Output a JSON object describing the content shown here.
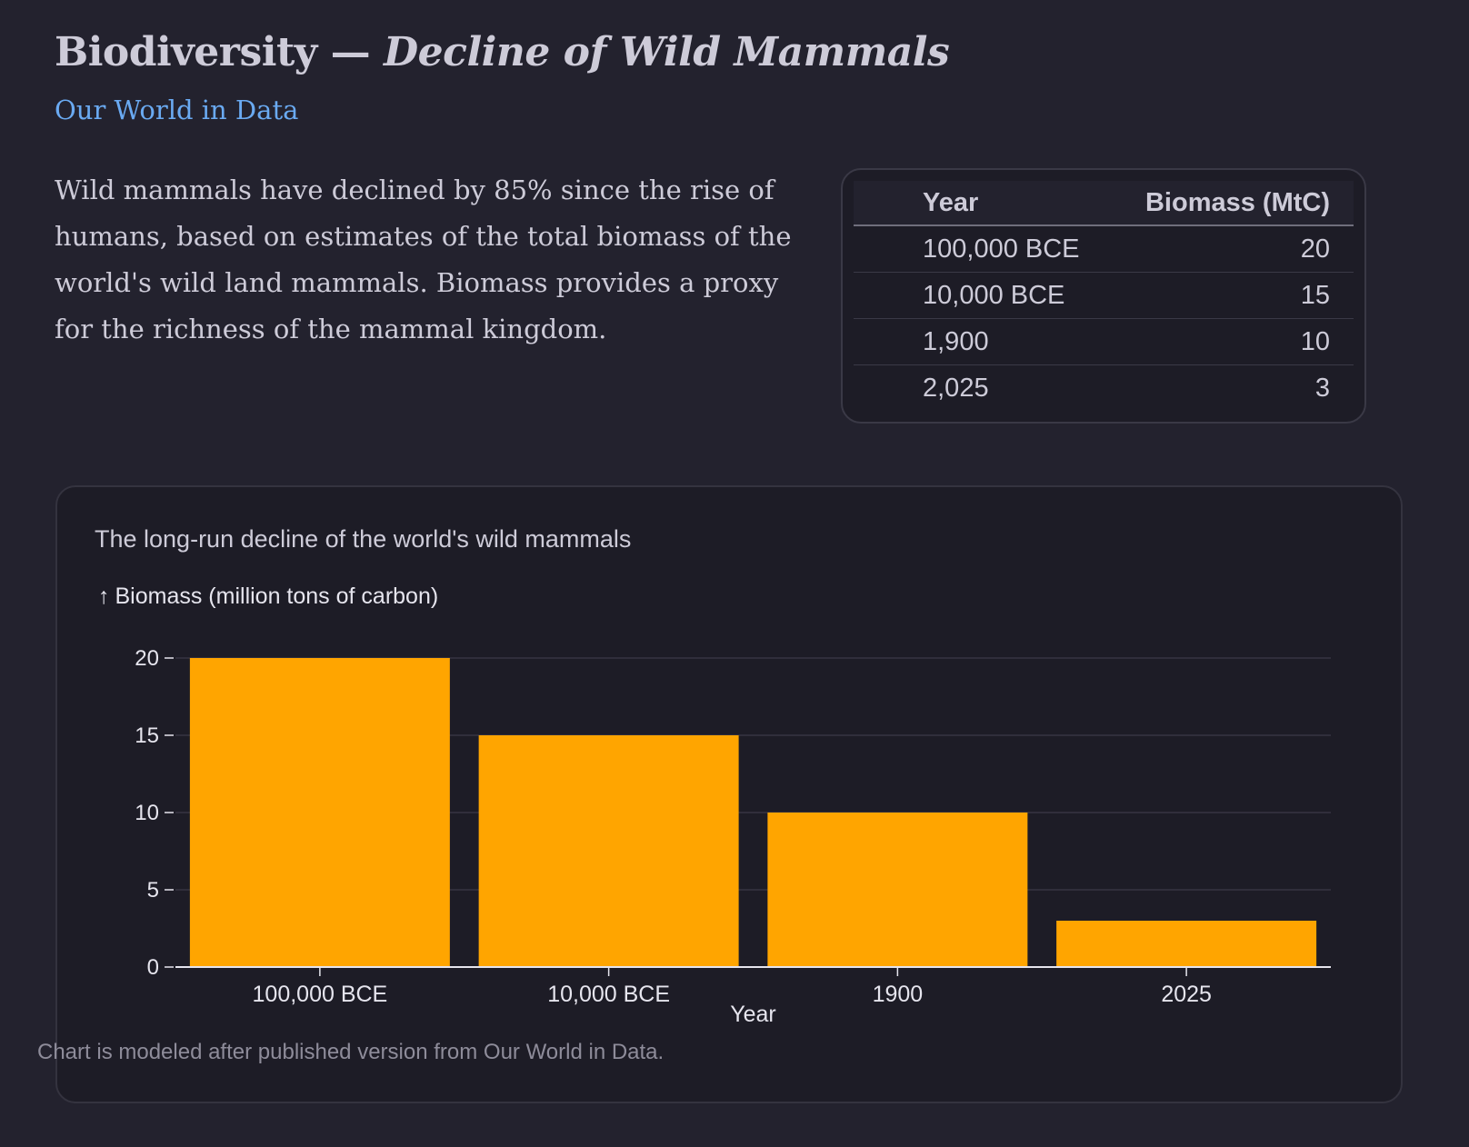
{
  "header": {
    "title_main": "Biodiversity — ",
    "title_italic": "Decline of Wild Mammals",
    "source_link": "Our World in Data"
  },
  "intro": {
    "text": "Wild mammals have declined by 85% since the rise of humans, based on estimates of the total biomass of the world's wild land mammals. Biomass provides a proxy for the richness of the mammal kingdom."
  },
  "table": {
    "headers": [
      "Year",
      "Biomass (MtC)"
    ],
    "rows": [
      {
        "year": "100,000 BCE",
        "value": "20"
      },
      {
        "year": "10,000 BCE",
        "value": "15"
      },
      {
        "year": "1,900",
        "value": "10"
      },
      {
        "year": "2,025",
        "value": "3"
      }
    ]
  },
  "chart_card": {
    "title": "The long-run decline of the world's wild mammals",
    "y_label_arrow": "↑",
    "note": "Chart is modeled after published version from Our World in Data."
  },
  "chart_data": {
    "type": "bar",
    "title": "The long-run decline of the world's wild mammals",
    "categories": [
      "100,000 BCE",
      "10,000 BCE",
      "1900",
      "2025"
    ],
    "values": [
      20,
      15,
      10,
      3
    ],
    "xlabel": "Year",
    "ylabel": "Biomass (million tons of carbon)",
    "ylim": [
      0,
      20
    ],
    "yticks": [
      0,
      5,
      10,
      15,
      20
    ],
    "grid": true,
    "legend": "none",
    "bar_color": "#ffa500"
  }
}
